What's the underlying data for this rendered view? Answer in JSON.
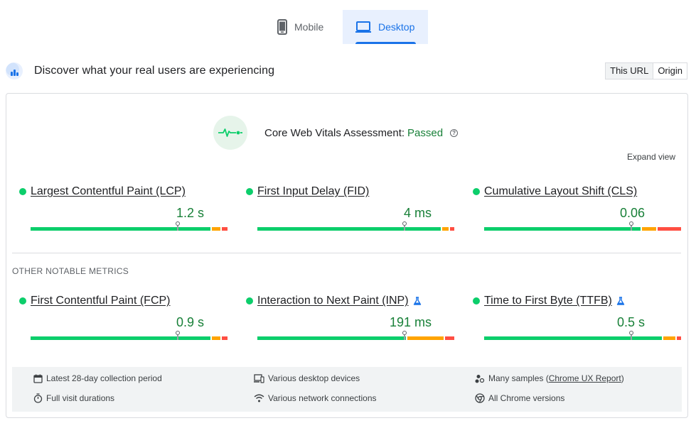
{
  "tabs": [
    {
      "label": "Mobile",
      "icon": "mobile-phone-icon",
      "active": false
    },
    {
      "label": "Desktop",
      "icon": "laptop-icon",
      "active": true
    }
  ],
  "crux": {
    "title": "Discover what your real users are experiencing",
    "scope_this_url": "This URL",
    "scope_origin": "Origin"
  },
  "assessment": {
    "label": "Core Web Vitals Assessment:",
    "status": "Passed",
    "help": "?"
  },
  "expand_view": "Expand view",
  "core_metrics": [
    {
      "name": "Largest Contentful Paint (LCP)",
      "value": "1.2 s",
      "status": "good",
      "experimental": false,
      "distribution": {
        "good": 0.92,
        "needs_improvement": 0.05,
        "poor": 0.03
      }
    },
    {
      "name": "First Input Delay (FID)",
      "value": "4 ms",
      "status": "good",
      "experimental": false,
      "distribution": {
        "good": 0.94,
        "needs_improvement": 0.04,
        "poor": 0.02
      }
    },
    {
      "name": "Cumulative Layout Shift (CLS)",
      "value": "0.06",
      "status": "good",
      "experimental": false,
      "distribution": {
        "good": 0.8,
        "needs_improvement": 0.08,
        "poor": 0.12
      }
    }
  ],
  "other_title": "OTHER NOTABLE METRICS",
  "other_metrics": [
    {
      "name": "First Contentful Paint (FCP)",
      "value": "0.9 s",
      "status": "good",
      "experimental": false,
      "distribution": {
        "good": 0.92,
        "needs_improvement": 0.05,
        "poor": 0.03
      }
    },
    {
      "name": "Interaction to Next Paint (INP)",
      "value": "191 ms",
      "status": "good",
      "experimental": true,
      "distribution": {
        "good": 0.76,
        "needs_improvement": 0.19,
        "poor": 0.05
      }
    },
    {
      "name": "Time to First Byte (TTFB)",
      "value": "0.5 s",
      "status": "good",
      "experimental": true,
      "distribution": {
        "good": 0.91,
        "needs_improvement": 0.07,
        "poor": 0.02
      }
    }
  ],
  "info": {
    "collection_period": "Latest 28-day collection period",
    "visit_durations": "Full visit durations",
    "devices": "Various desktop devices",
    "network": "Various network connections",
    "samples_prefix": "Many samples (",
    "samples_link": "Chrome UX Report",
    "samples_suffix": ")",
    "chrome_versions": "All Chrome versions"
  },
  "colors": {
    "good": "#0cce6b",
    "needs_improvement": "#ffa400",
    "poor": "#ff4e42",
    "accent": "#1a73e8",
    "pass_text": "#188038"
  }
}
